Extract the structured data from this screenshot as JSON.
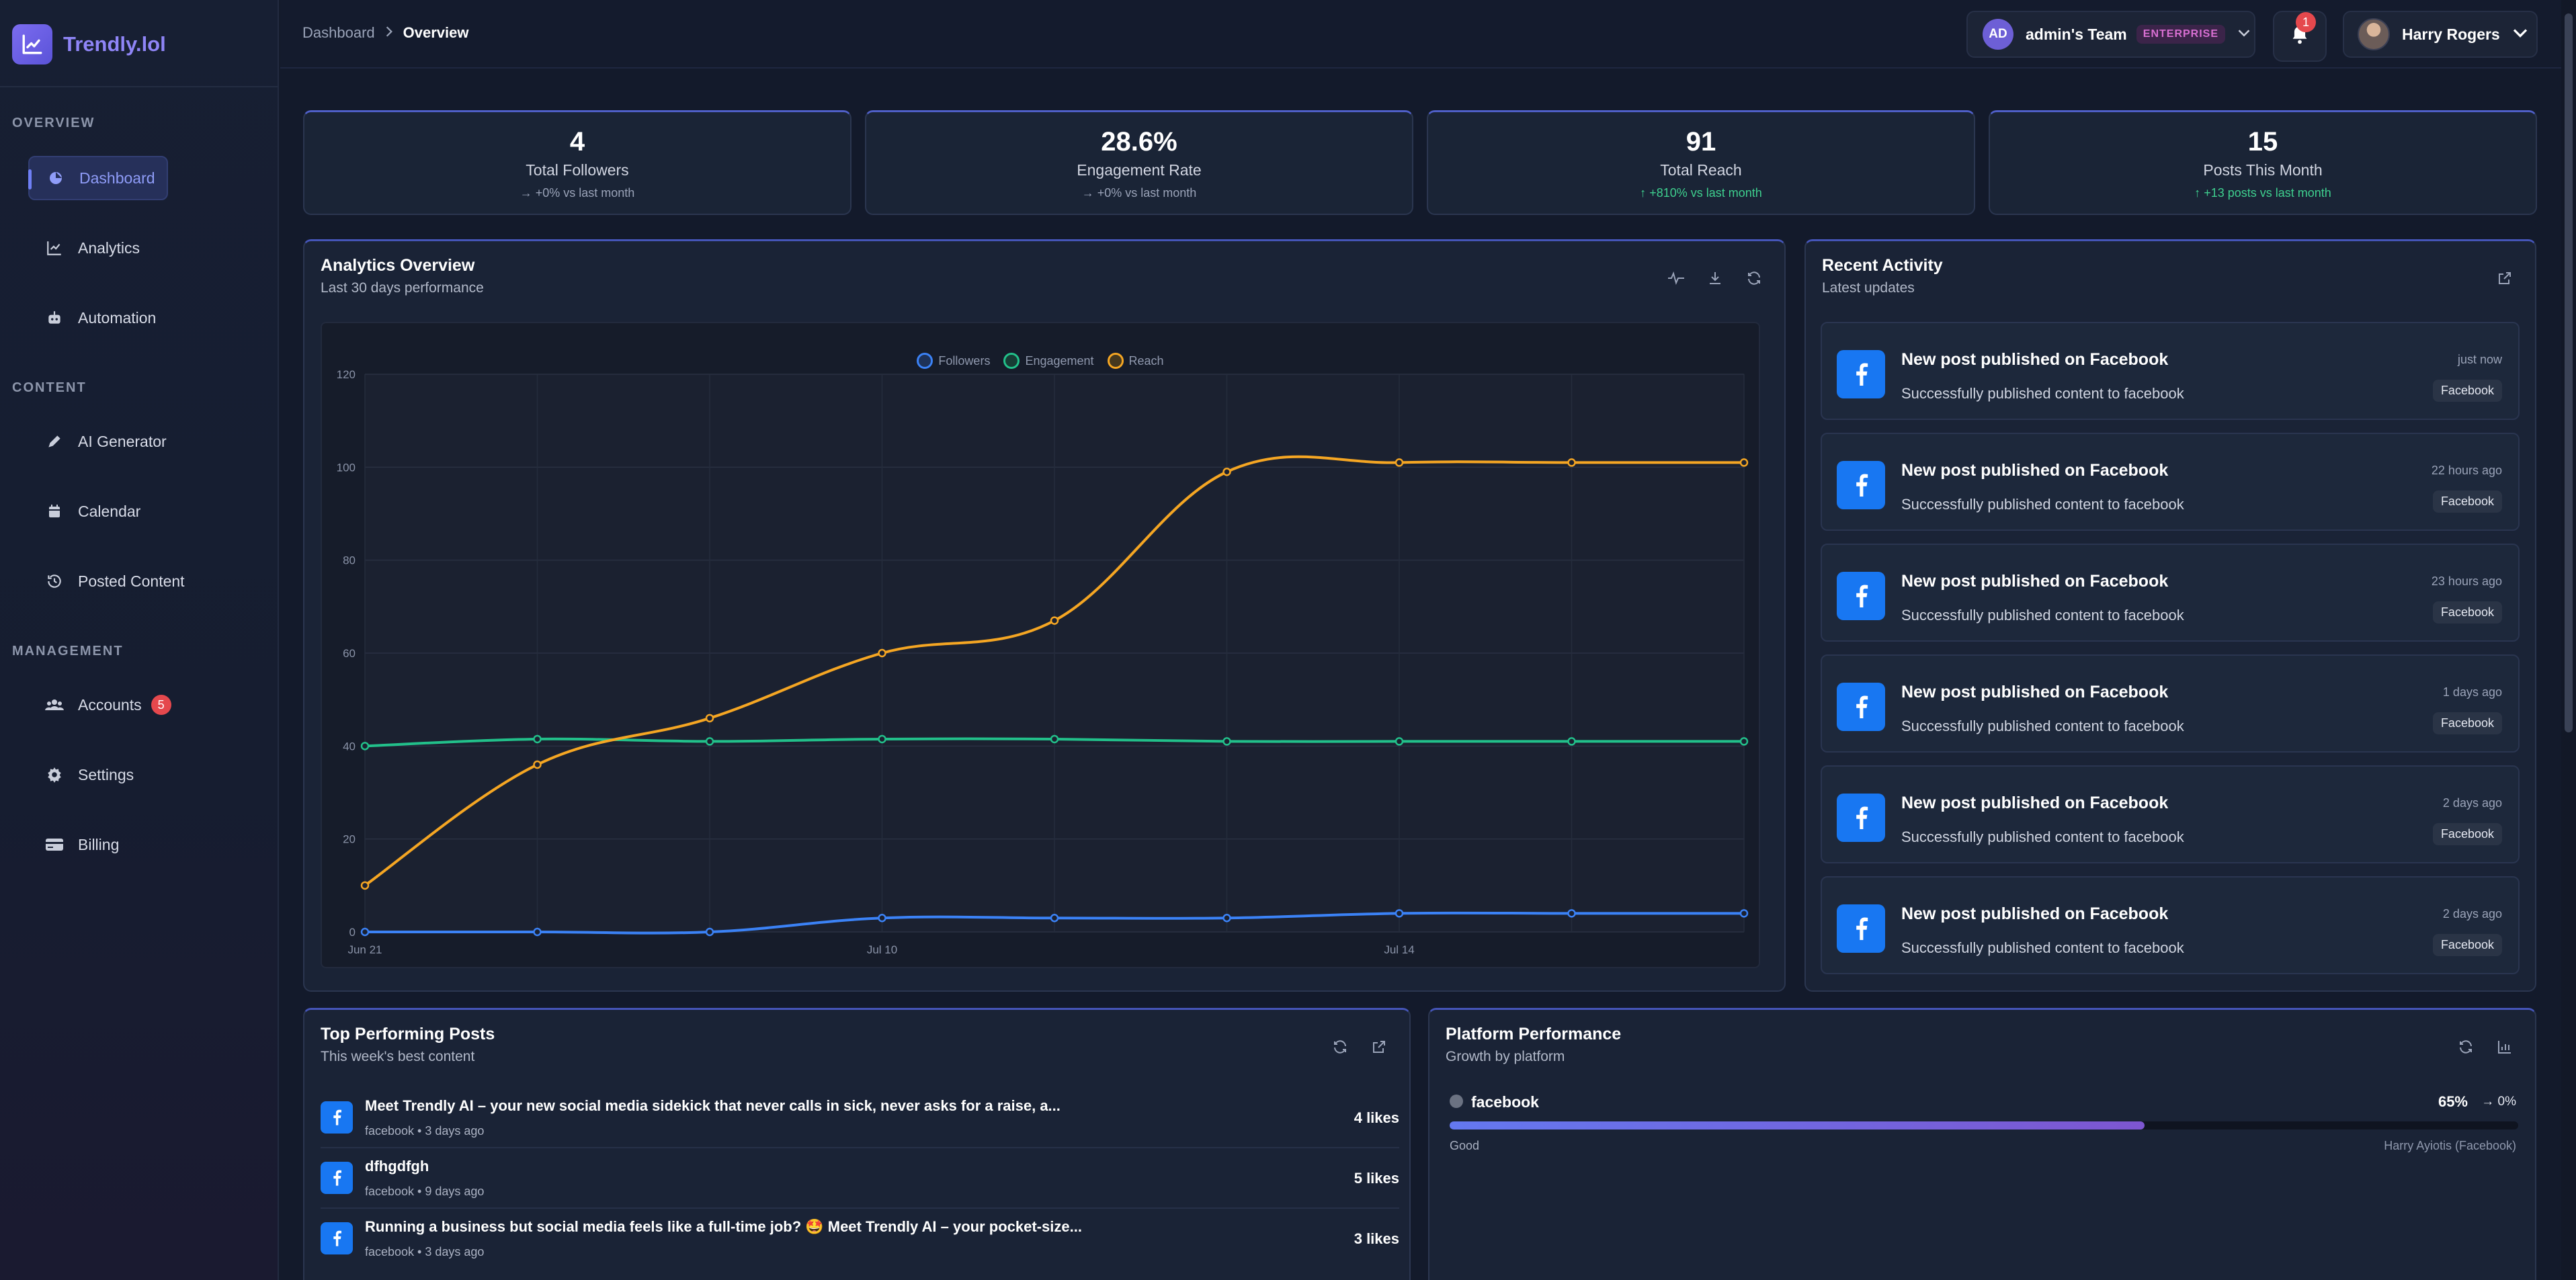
{
  "brand": {
    "name": "Trendly.lol",
    "accent": "#8f85f7"
  },
  "sidebar": {
    "sections": [
      {
        "title": "OVERVIEW",
        "items": [
          {
            "label": "Dashboard",
            "icon": "chart-pie-icon",
            "active": true
          },
          {
            "label": "Analytics",
            "icon": "line-chart-icon"
          },
          {
            "label": "Automation",
            "icon": "robot-icon"
          }
        ]
      },
      {
        "title": "CONTENT",
        "items": [
          {
            "label": "AI Generator",
            "icon": "pen-icon"
          },
          {
            "label": "Calendar",
            "icon": "calendar-icon"
          },
          {
            "label": "Posted Content",
            "icon": "history-icon"
          }
        ]
      },
      {
        "title": "MANAGEMENT",
        "items": [
          {
            "label": "Accounts",
            "icon": "users-icon",
            "badge": "5"
          },
          {
            "label": "Settings",
            "icon": "gear-icon"
          },
          {
            "label": "Billing",
            "icon": "credit-card-icon"
          }
        ]
      }
    ]
  },
  "header": {
    "breadcrumb": {
      "parent": "Dashboard",
      "current": "Overview"
    },
    "team": {
      "initials": "AD",
      "name": "admin's Team",
      "plan": "ENTERPRISE"
    },
    "notifications": {
      "count": "1"
    },
    "user": {
      "name": "Harry Rogers"
    }
  },
  "stats": [
    {
      "value": "4",
      "label": "Total Followers",
      "delta": "+0% vs last month",
      "trend": "flat"
    },
    {
      "value": "28.6%",
      "label": "Engagement Rate",
      "delta": "+0% vs last month",
      "trend": "flat"
    },
    {
      "value": "91",
      "label": "Total Reach",
      "delta": "+810% vs last month",
      "trend": "up"
    },
    {
      "value": "15",
      "label": "Posts This Month",
      "delta": "+13 posts vs last month",
      "trend": "up"
    }
  ],
  "analytics": {
    "title": "Analytics Overview",
    "subtitle": "Last 30 days performance"
  },
  "chart_data": {
    "type": "line",
    "x_ticks": [
      "Jun 21",
      "Jul 10",
      "Jul 14"
    ],
    "x_tick_indices": [
      0,
      3,
      6
    ],
    "point_count": 9,
    "ylim": [
      0,
      120
    ],
    "y_ticks": [
      0,
      20,
      40,
      60,
      80,
      100,
      120
    ],
    "grid": true,
    "legend_position": "top-center",
    "series": [
      {
        "name": "Followers",
        "color": "#3b82f6",
        "values": [
          0,
          0,
          0,
          3,
          3,
          3,
          4,
          4,
          4
        ]
      },
      {
        "name": "Engagement",
        "color": "#22c08a",
        "values": [
          40,
          41.5,
          41,
          41.5,
          41.5,
          41,
          41,
          41,
          41
        ]
      },
      {
        "name": "Reach",
        "color": "#f5a623",
        "values": [
          10,
          36,
          46,
          60,
          67,
          99,
          101,
          101,
          101
        ]
      }
    ]
  },
  "activity": {
    "title": "Recent Activity",
    "subtitle": "Latest updates",
    "items": [
      {
        "title": "New post published on Facebook",
        "desc": "Successfully published content to facebook",
        "time": "just now",
        "tag": "Facebook"
      },
      {
        "title": "New post published on Facebook",
        "desc": "Successfully published content to facebook",
        "time": "22 hours ago",
        "tag": "Facebook"
      },
      {
        "title": "New post published on Facebook",
        "desc": "Successfully published content to facebook",
        "time": "23 hours ago",
        "tag": "Facebook"
      },
      {
        "title": "New post published on Facebook",
        "desc": "Successfully published content to facebook",
        "time": "1 days ago",
        "tag": "Facebook"
      },
      {
        "title": "New post published on Facebook",
        "desc": "Successfully published content to facebook",
        "time": "2 days ago",
        "tag": "Facebook"
      },
      {
        "title": "New post published on Facebook",
        "desc": "Successfully published content to facebook",
        "time": "2 days ago",
        "tag": "Facebook"
      }
    ]
  },
  "top_posts": {
    "title": "Top Performing Posts",
    "subtitle": "This week's best content",
    "items": [
      {
        "title": "Meet Trendly AI – your new social media sidekick that never calls in sick, never asks for a raise, a...",
        "meta": "facebook • 3 days ago",
        "likes": "4 likes"
      },
      {
        "title": "dfhgdfgh",
        "meta": "facebook • 9 days ago",
        "likes": "5 likes"
      },
      {
        "title": "Running a business but social media feels like a full-time job? 🤩 Meet Trendly AI – your pocket-size...",
        "meta": "facebook • 3 days ago",
        "likes": "3 likes"
      }
    ]
  },
  "platform": {
    "title": "Platform Performance",
    "subtitle": "Growth by platform",
    "items": [
      {
        "name": "facebook",
        "percent": "65%",
        "progress": 0.65,
        "trend": "0%",
        "quality": "Good",
        "account": "Harry Ayiotis (Facebook)"
      }
    ]
  }
}
